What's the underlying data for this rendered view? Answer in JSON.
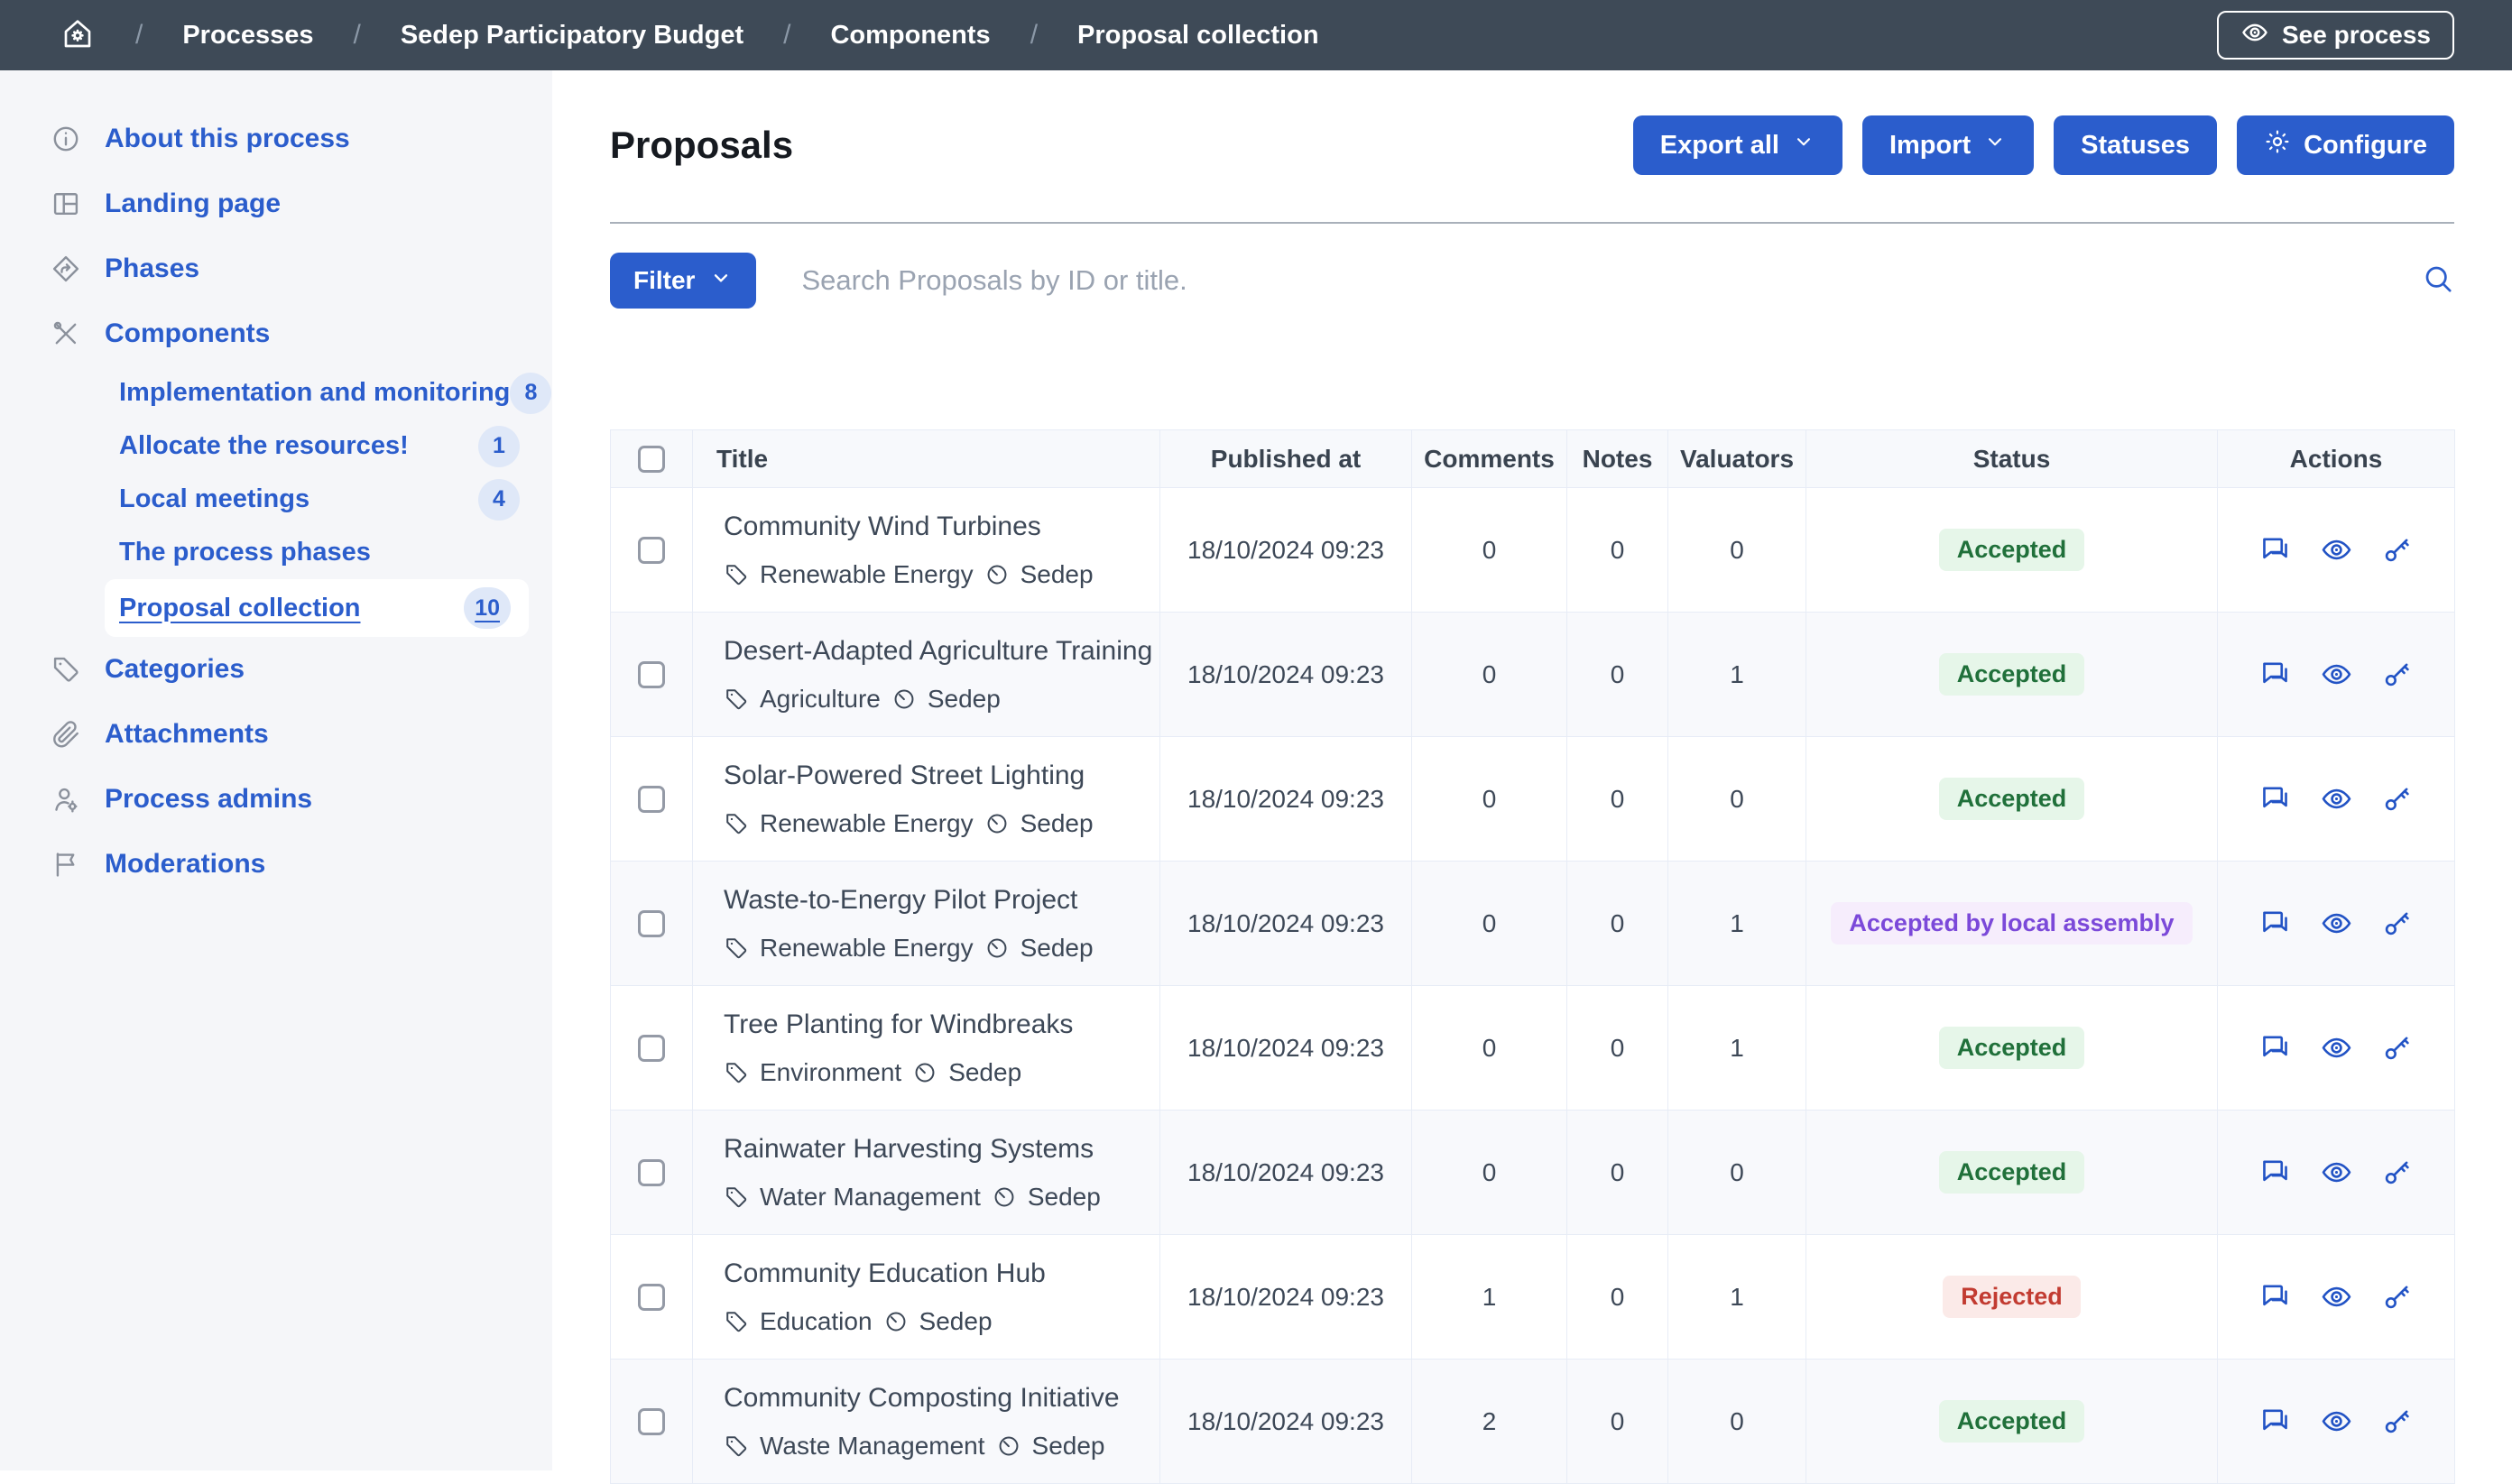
{
  "colors": {
    "primary": "#2b5dcc",
    "topbar_bg": "#3e4a57",
    "sidebar_bg": "#f5f6f9"
  },
  "topbar": {
    "home_icon": "home-gear-icon",
    "breadcrumb": [
      "Processes",
      "Sedep Participatory Budget",
      "Components",
      "Proposal collection"
    ],
    "see_process_label": "See process",
    "see_process_icon": "eye-icon"
  },
  "sidebar": {
    "items": [
      {
        "label": "About this process",
        "icon": "info-icon"
      },
      {
        "label": "Landing page",
        "icon": "layout-icon"
      },
      {
        "label": "Phases",
        "icon": "phases-icon"
      },
      {
        "label": "Components",
        "icon": "tools-icon"
      },
      {
        "label": "Implementation and monitoring",
        "indent": true,
        "badge": "8"
      },
      {
        "label": "Allocate the resources!",
        "indent": true,
        "badge": "1"
      },
      {
        "label": "Local meetings",
        "indent": true,
        "badge": "4"
      },
      {
        "label": "The process phases",
        "indent": true
      },
      {
        "label": "Proposal collection",
        "indent": true,
        "badge": "10",
        "active": true
      },
      {
        "label": "Categories",
        "icon": "tag-icon"
      },
      {
        "label": "Attachments",
        "icon": "paperclip-icon"
      },
      {
        "label": "Process admins",
        "icon": "user-gear-icon"
      },
      {
        "label": "Moderations",
        "icon": "flag-icon"
      }
    ]
  },
  "page": {
    "title": "Proposals",
    "toolbar": {
      "export_all": "Export all",
      "import": "Import",
      "statuses": "Statuses",
      "configure": "Configure",
      "configure_icon": "gear-icon"
    },
    "filter_label": "Filter",
    "search_placeholder": "Search Proposals by ID or title.",
    "search_icon": "search-icon"
  },
  "table": {
    "columns": [
      "Title",
      "Published at",
      "Comments",
      "Notes",
      "Valuators",
      "Status",
      "Actions"
    ],
    "meta_icons": [
      "tag-icon",
      "scope-icon"
    ],
    "action_icons": [
      "chat-icon",
      "eye-icon",
      "key-icon"
    ],
    "rows": [
      {
        "title": "Community Wind Turbines",
        "category": "Renewable Energy",
        "scope": "Sedep",
        "published_at": "18/10/2024 09:23",
        "comments": 0,
        "notes": 0,
        "valuators": 0,
        "status": "Accepted",
        "status_type": "accepted"
      },
      {
        "title": "Desert-Adapted Agriculture Training",
        "category": "Agriculture",
        "scope": "Sedep",
        "published_at": "18/10/2024 09:23",
        "comments": 0,
        "notes": 0,
        "valuators": 1,
        "status": "Accepted",
        "status_type": "accepted"
      },
      {
        "title": "Solar-Powered Street Lighting",
        "category": "Renewable Energy",
        "scope": "Sedep",
        "published_at": "18/10/2024 09:23",
        "comments": 0,
        "notes": 0,
        "valuators": 0,
        "status": "Accepted",
        "status_type": "accepted"
      },
      {
        "title": "Waste-to-Energy Pilot Project",
        "category": "Renewable Energy",
        "scope": "Sedep",
        "published_at": "18/10/2024 09:23",
        "comments": 0,
        "notes": 0,
        "valuators": 1,
        "status": "Accepted by local assembly",
        "status_type": "accepted_alt"
      },
      {
        "title": "Tree Planting for Windbreaks",
        "category": "Environment",
        "scope": "Sedep",
        "published_at": "18/10/2024 09:23",
        "comments": 0,
        "notes": 0,
        "valuators": 1,
        "status": "Accepted",
        "status_type": "accepted"
      },
      {
        "title": "Rainwater Harvesting Systems",
        "category": "Water Management",
        "scope": "Sedep",
        "published_at": "18/10/2024 09:23",
        "comments": 0,
        "notes": 0,
        "valuators": 0,
        "status": "Accepted",
        "status_type": "accepted"
      },
      {
        "title": "Community Education Hub",
        "category": "Education",
        "scope": "Sedep",
        "published_at": "18/10/2024 09:23",
        "comments": 1,
        "notes": 0,
        "valuators": 1,
        "status": "Rejected",
        "status_type": "rejected"
      },
      {
        "title": "Community Composting Initiative",
        "category": "Waste Management",
        "scope": "Sedep",
        "published_at": "18/10/2024 09:23",
        "comments": 2,
        "notes": 0,
        "valuators": 0,
        "status": "Accepted",
        "status_type": "accepted"
      }
    ]
  },
  "status_styles": {
    "accepted": {
      "color": "#20703a",
      "bg": "#e6f6e9"
    },
    "accepted_alt": {
      "color": "#7b49d9",
      "bg": "#f6edfc"
    },
    "rejected": {
      "color": "#c23b31",
      "bg": "#fbeae8"
    }
  }
}
